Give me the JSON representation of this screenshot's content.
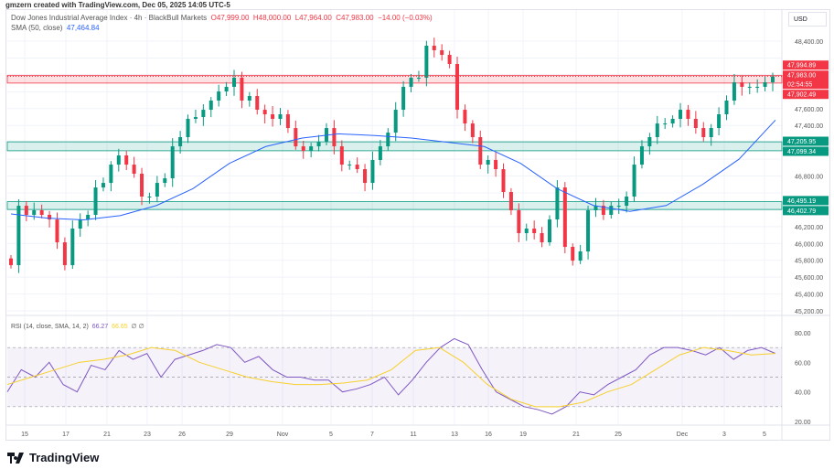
{
  "credit": "gmzern created with TradingView.com, Dec 05, 2025 14:05 UTC-5",
  "legend": {
    "title": "Dow Jones Industrial Average Index · 4h · BlackBull Markets",
    "o": "O47,999.00",
    "h": "H48,000.00",
    "l": "L47,964.00",
    "c": "C47,983.00",
    "chg": "−14.00 (−0.03%)",
    "sma_label": "SMA (50, close)",
    "sma_value": "47,464.84"
  },
  "rsi_legend": {
    "label": "RSI (14, close, SMA, 14, 2)",
    "rsi": "66.27",
    "sma": "66.65",
    "extra": "∅ ∅"
  },
  "currency": "USD",
  "footer": {
    "logo": "TradingView"
  },
  "colors": {
    "up": "#089981",
    "down": "#f23645",
    "sma": "#2962ff",
    "rsi": "#7e57c2",
    "rsi_sma": "#f7d02b"
  },
  "chart_data": {
    "type": "candlestick",
    "y_ticks": [
      48400,
      48200,
      48000,
      47800,
      47600,
      47400,
      47200,
      47000,
      46800,
      46600,
      46400,
      46200,
      46000,
      45800,
      45600,
      45400,
      45200
    ],
    "ylim": [
      45200,
      48400
    ],
    "x_ticks": [
      "15",
      "17",
      "21",
      "23",
      "26",
      "29",
      "Nov",
      "5",
      "7",
      "11",
      "13",
      "16",
      "19",
      "21",
      "25",
      "Dec",
      "3",
      "5"
    ],
    "closes": [
      45742,
      46447,
      46339,
      46393,
      46339,
      46284,
      46013,
      45742,
      46176,
      46284,
      46339,
      46664,
      46718,
      46935,
      47044,
      46935,
      46827,
      46556,
      46556,
      46718,
      46773,
      47152,
      47261,
      47478,
      47499,
      47586,
      47695,
      47803,
      47858,
      47966,
      47695,
      47749,
      47586,
      47532,
      47478,
      47532,
      47369,
      47152,
      47098,
      47152,
      47207,
      47369,
      47152,
      46935,
      46935,
      46881,
      46718,
      46990,
      47152,
      47315,
      47586,
      47858,
      47966,
      47966,
      48346,
      48292,
      48237,
      48129,
      47586,
      47423,
      47261,
      46935,
      46990,
      46881,
      46610,
      46393,
      46122,
      46176,
      46122,
      46013,
      46284,
      46664,
      45959,
      45796,
      45905,
      46393,
      46447,
      46339,
      46447,
      46447,
      46556,
      46935,
      47152,
      47261,
      47423,
      47423,
      47478,
      47586,
      47478,
      47369,
      47261,
      47369,
      47532,
      47695,
      47912,
      47858,
      47858,
      47858,
      47912,
      47983
    ],
    "sma": [
      46350,
      46300,
      46280,
      46330,
      46450,
      46650,
      46950,
      47150,
      47250,
      47300,
      47280,
      47250,
      47200,
      47150,
      46950,
      46650,
      46450,
      46380,
      46450,
      46700,
      47000,
      47464
    ],
    "zones": [
      {
        "from": 47902.49,
        "to": 47994.89,
        "color": "#f23645",
        "labels": [
          "47,994.89",
          "47,902.49"
        ]
      },
      {
        "from": 47099.34,
        "to": 47205.95,
        "color": "#089981",
        "labels": [
          "47,205.95",
          "47,099.34"
        ]
      },
      {
        "from": 46402.79,
        "to": 46495.19,
        "color": "#089981",
        "labels": [
          "46,495.19",
          "46,402.79"
        ]
      }
    ],
    "last_price": {
      "value": 47983,
      "label": "47,983.00",
      "countdown": "02:54:55"
    },
    "rsi": {
      "ylim": [
        20,
        80
      ],
      "ticks": [
        80,
        60,
        40,
        20
      ],
      "bands": [
        70,
        50,
        30
      ],
      "values": [
        40,
        55,
        50,
        60,
        45,
        40,
        58,
        55,
        68,
        62,
        66,
        50,
        62,
        65,
        68,
        72,
        70,
        60,
        64,
        55,
        50,
        50,
        48,
        48,
        40,
        42,
        45,
        50,
        38,
        48,
        60,
        70,
        76,
        72,
        55,
        40,
        35,
        30,
        28,
        25,
        30,
        40,
        38,
        45,
        50,
        55,
        65,
        70,
        70,
        68,
        65,
        70,
        62,
        68,
        70,
        66
      ],
      "sma": [
        45,
        50,
        55,
        60,
        62,
        65,
        70,
        68,
        60,
        55,
        50,
        47,
        45,
        45,
        46,
        48,
        55,
        68,
        70,
        60,
        45,
        35,
        30,
        30,
        33,
        40,
        45,
        55,
        65,
        70,
        68,
        65,
        66
      ]
    }
  }
}
